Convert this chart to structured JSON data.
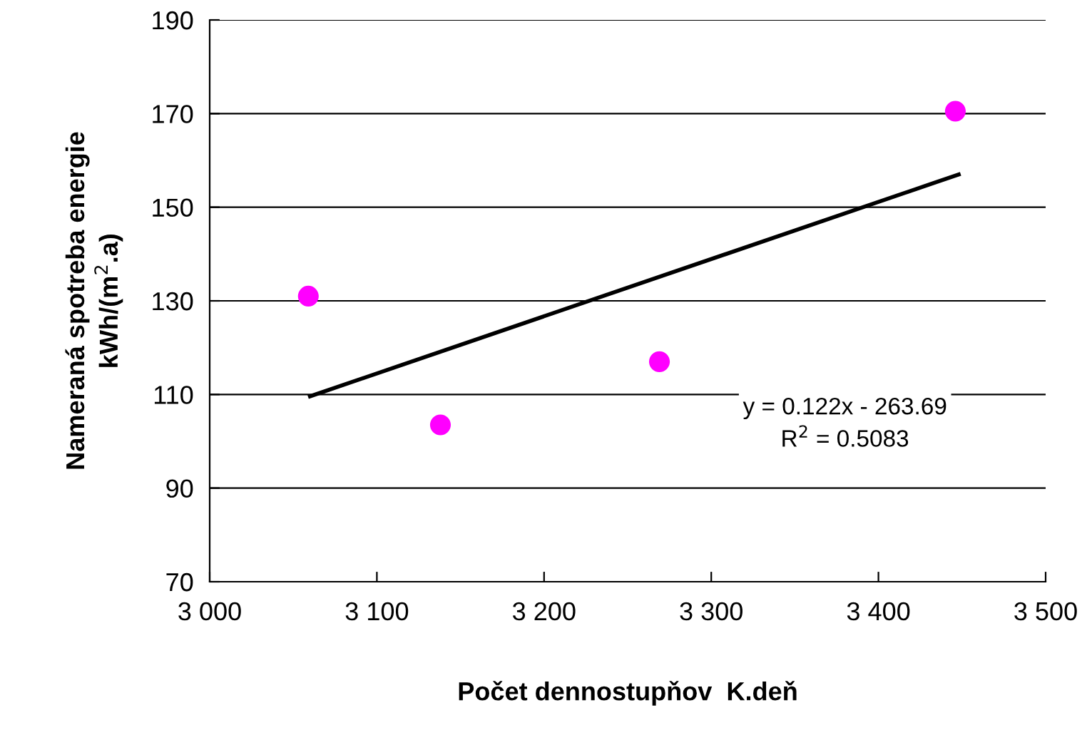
{
  "chart_data": {
    "type": "scatter",
    "xlabel": "Počet dennostupňov  K.deň",
    "ylabel": "Nameraná spotreba energie\nkWh/(m$^{2}$.a)",
    "series": [
      {
        "color": "#ff00ff",
        "x": [
          3059,
          3138,
          3269,
          3446
        ],
        "values": [
          131,
          103.5,
          117,
          170.5
        ],
        "marker": "circle"
      },
      {
        "type": "line",
        "color": "#000000",
        "x": [
          3060,
          3448
        ],
        "values": [
          109.6,
          157
        ],
        "marker": "none",
        "line_style": "solid"
      }
    ],
    "annotations": [
      "y = 0.122x - 263.69\nR$^{2}$ = 0.5083"
    ],
    "xlim": [
      3000,
      3500
    ],
    "xticks": [
      {
        "value": 3000,
        "label": "3 000"
      },
      {
        "value": 3100,
        "label": "3 100"
      },
      {
        "value": 3200,
        "label": "3 200"
      },
      {
        "value": 3300,
        "label": "3 300"
      },
      {
        "value": 3400,
        "label": "3 400"
      },
      {
        "value": 3500,
        "label": "3 500"
      }
    ],
    "ylim": [
      70,
      190
    ],
    "yticks": [
      70,
      90,
      110,
      130,
      150,
      170,
      190
    ],
    "grid": "y",
    "legend": false
  }
}
